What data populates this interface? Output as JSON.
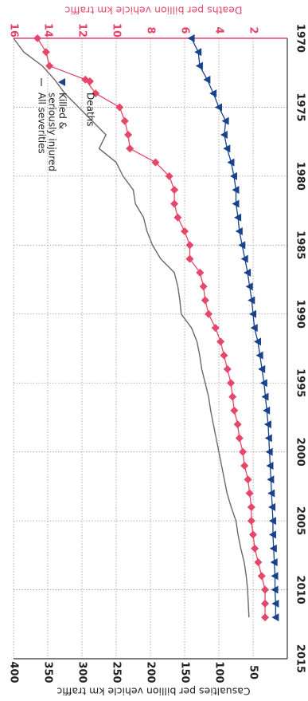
{
  "chart_data": {
    "type": "line",
    "orientation": "rotated-90-clockwise",
    "x": {
      "label": "",
      "range": [
        1970,
        2015
      ],
      "ticks": [
        1970,
        1975,
        1980,
        1985,
        1990,
        1995,
        2000,
        2005,
        2010,
        2015
      ],
      "tick_labels": [
        "1970",
        "1975",
        "1980",
        "1985",
        "1990",
        "1995",
        "2000",
        "2005",
        "2010",
        "2015"
      ]
    },
    "y_left": {
      "label": "Casualties per billion vehicle km traffic",
      "range": [
        0,
        400
      ],
      "ticks": [
        50,
        100,
        150,
        200,
        250,
        300,
        350,
        400
      ],
      "tick_labels": [
        "50",
        "100",
        "150",
        "200",
        "250",
        "300",
        "350",
        "400"
      ]
    },
    "y_right": {
      "label": "Deaths per billion vehicle km traffic",
      "range": [
        0,
        16
      ],
      "ticks": [
        2,
        4,
        6,
        8,
        10,
        12,
        14,
        16
      ],
      "tick_labels": [
        "2",
        "4",
        "6",
        "8",
        "10",
        "12",
        "14",
        "16"
      ],
      "color": "#e5466a"
    },
    "grid": true,
    "legend_position": "top-left",
    "series": [
      {
        "name": "All severities",
        "axis": "left",
        "color": "#6f6565",
        "marker": "none",
        "x": [
          1970,
          1971,
          1972,
          1973,
          1974,
          1975,
          1976,
          1977,
          1978,
          1979,
          1980,
          1981,
          1982,
          1983,
          1984,
          1985,
          1986,
          1987,
          1988,
          1989,
          1990,
          1991,
          1992,
          1993,
          1994,
          1995,
          1996,
          1997,
          1998,
          1999,
          2000,
          2001,
          2002,
          2003,
          2004,
          2005,
          2006,
          2007,
          2008,
          2009,
          2010,
          2011,
          2012
        ],
        "y": [
          400,
          385,
          358,
          340,
          325,
          305,
          285,
          265,
          275,
          250,
          240,
          225,
          222,
          210,
          205,
          197,
          185,
          165,
          160,
          157,
          155,
          140,
          132,
          128,
          125,
          120,
          115,
          112,
          108,
          104,
          100,
          96,
          92,
          88,
          82,
          75,
          72,
          68,
          63,
          60,
          58,
          57,
          56
        ]
      },
      {
        "name": "Killed & seriously injured",
        "axis": "left",
        "color": "#17428c",
        "marker": "triangle",
        "x": [
          1970,
          1971,
          1972,
          1973,
          1974,
          1975,
          1976,
          1977,
          1978,
          1979,
          1980,
          1981,
          1982,
          1983,
          1984,
          1985,
          1986,
          1987,
          1988,
          1989,
          1990,
          1991,
          1992,
          1993,
          1994,
          1995,
          1996,
          1997,
          1998,
          1999,
          2000,
          2001,
          2002,
          2003,
          2004,
          2005,
          2006,
          2007,
          2008,
          2009,
          2010,
          2011,
          2012
        ],
        "y": [
          140,
          130,
          128,
          117,
          108,
          100,
          90,
          92,
          88,
          82,
          78,
          75,
          75,
          72,
          70,
          66,
          62,
          58,
          55,
          52,
          50,
          48,
          43,
          40,
          37,
          34,
          32,
          30,
          28,
          27,
          26,
          25,
          24,
          23,
          22,
          21,
          21,
          20,
          19,
          18,
          18,
          17,
          17
        ]
      },
      {
        "name": "Deaths",
        "axis": "right",
        "color": "#e5466a",
        "marker": "diamond",
        "x": [
          1970,
          1971,
          1972,
          1973,
          1974,
          1975,
          1976,
          1977,
          1978,
          1979,
          1980,
          1981,
          1982,
          1983,
          1984,
          1985,
          1986,
          1987,
          1988,
          1989,
          1990,
          1991,
          1992,
          1993,
          1994,
          1995,
          1996,
          1997,
          1998,
          1999,
          2000,
          2001,
          2002,
          2003,
          2004,
          2005,
          2006,
          2007,
          2008,
          2009,
          2010,
          2011,
          2012
        ],
        "y": [
          14.6,
          14.1,
          13.9,
          11.8,
          11.2,
          9.8,
          9.5,
          9.3,
          9.2,
          7.7,
          6.9,
          6.6,
          6.6,
          6.4,
          6.0,
          5.7,
          5.7,
          5.1,
          4.9,
          4.8,
          4.6,
          4.2,
          3.9,
          3.7,
          3.5,
          3.3,
          3.2,
          3.1,
          2.9,
          2.8,
          2.6,
          2.5,
          2.3,
          2.2,
          2.1,
          2.1,
          2.0,
          1.9,
          1.7,
          1.5,
          1.3,
          1.3,
          1.3
        ]
      }
    ]
  }
}
